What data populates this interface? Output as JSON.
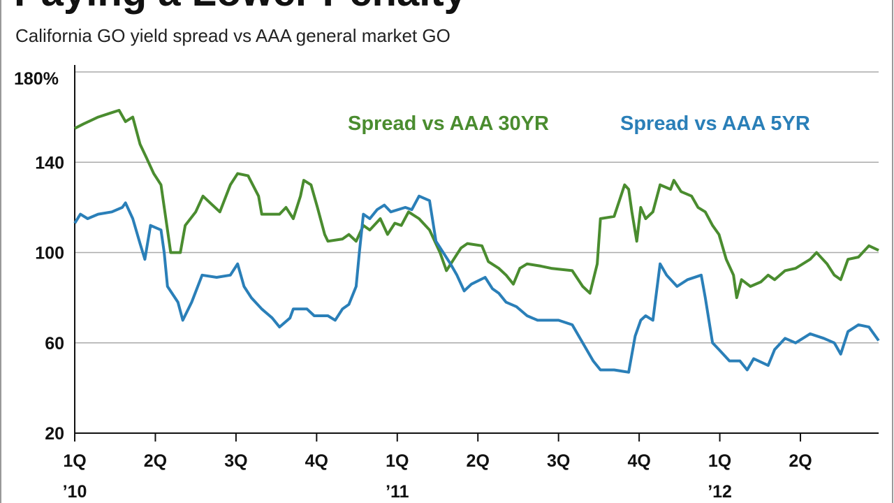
{
  "chart_data": {
    "type": "line",
    "title": "Paying a Lower Penalty",
    "subtitle": "California GO yield spread vs AAA general market GO",
    "xlim": [
      0,
      9.97
    ],
    "xticks": [
      {
        "value": 0,
        "label": "1Q"
      },
      {
        "value": 1,
        "label": "2Q"
      },
      {
        "value": 2,
        "label": "3Q"
      },
      {
        "value": 3,
        "label": "4Q"
      },
      {
        "value": 4,
        "label": "1Q"
      },
      {
        "value": 5,
        "label": "2Q"
      },
      {
        "value": 6,
        "label": "3Q"
      },
      {
        "value": 7,
        "label": "4Q"
      },
      {
        "value": 8,
        "label": "1Q"
      },
      {
        "value": 9,
        "label": "2Q"
      }
    ],
    "xtick_years": [
      {
        "value": 0,
        "label": "’10"
      },
      {
        "value": 4,
        "label": "’11"
      },
      {
        "value": 8,
        "label": "’12"
      }
    ],
    "ylim": [
      20,
      180
    ],
    "yticks": [
      20,
      60,
      100,
      140,
      {
        "value": 180,
        "label": "180%"
      }
    ],
    "grid": true,
    "series": [
      {
        "name": "Spread vs AAA 30YR",
        "color": "#4a8c2f",
        "x": [
          0,
          0.11,
          0.29,
          0.46,
          0.55,
          0.63,
          0.72,
          0.81,
          0.89,
          0.98,
          1.07,
          1.15,
          1.19,
          1.31,
          1.37,
          1.5,
          1.59,
          1.68,
          1.8,
          1.93,
          2.02,
          2.15,
          2.28,
          2.32,
          2.54,
          2.62,
          2.71,
          2.8,
          2.84,
          2.93,
          3.01,
          3.1,
          3.14,
          3.32,
          3.4,
          3.49,
          3.58,
          3.66,
          3.79,
          3.88,
          3.97,
          4.05,
          4.14,
          4.27,
          4.4,
          4.53,
          4.61,
          4.7,
          4.79,
          4.87,
          5.05,
          5.13,
          5.26,
          5.35,
          5.44,
          5.52,
          5.61,
          5.78,
          5.91,
          6.17,
          6.3,
          6.39,
          6.48,
          6.52,
          6.69,
          6.82,
          6.87,
          6.91,
          6.97,
          7.02,
          7.08,
          7.17,
          7.26,
          7.39,
          7.43,
          7.52,
          7.65,
          7.73,
          7.82,
          7.91,
          7.99,
          8.08,
          8.17,
          8.21,
          8.27,
          8.38,
          8.51,
          8.6,
          8.68,
          8.81,
          8.94,
          9.12,
          9.2,
          9.33,
          9.42,
          9.5,
          9.59,
          9.72,
          9.85,
          9.97
        ],
        "values": [
          155,
          157,
          160,
          162,
          163,
          158,
          160,
          148,
          142,
          135,
          130,
          110,
          100,
          100,
          112,
          118,
          125,
          122,
          118,
          130,
          135,
          134,
          125,
          117,
          117,
          120,
          115,
          125,
          132,
          130,
          120,
          108,
          105,
          106,
          108,
          105,
          112,
          110,
          115,
          108,
          113,
          112,
          118,
          115,
          110,
          100,
          92,
          97,
          102,
          104,
          103,
          96,
          93,
          90,
          86,
          93,
          95,
          94,
          93,
          92,
          85,
          82,
          95,
          115,
          116,
          130,
          128,
          118,
          105,
          120,
          115,
          118,
          130,
          128,
          132,
          127,
          125,
          120,
          118,
          112,
          108,
          97,
          90,
          80,
          88,
          85,
          87,
          90,
          88,
          92,
          93,
          97,
          100,
          95,
          90,
          88,
          97,
          98,
          103,
          101
        ]
      },
      {
        "name": "Spread vs AAA 5YR",
        "color": "#2a7fb8",
        "x": [
          0,
          0.07,
          0.16,
          0.29,
          0.46,
          0.59,
          0.63,
          0.72,
          0.81,
          0.87,
          0.94,
          1.07,
          1.11,
          1.15,
          1.28,
          1.34,
          1.45,
          1.58,
          1.76,
          1.93,
          2.02,
          2.1,
          2.19,
          2.32,
          2.45,
          2.54,
          2.67,
          2.71,
          2.88,
          2.97,
          3.14,
          3.23,
          3.32,
          3.4,
          3.49,
          3.53,
          3.58,
          3.66,
          3.75,
          3.84,
          3.92,
          4.1,
          4.18,
          4.27,
          4.4,
          4.48,
          4.57,
          4.66,
          4.74,
          4.83,
          4.92,
          5.09,
          5.18,
          5.26,
          5.35,
          5.48,
          5.61,
          5.74,
          6,
          6.17,
          6.3,
          6.43,
          6.52,
          6.69,
          6.87,
          6.95,
          7.02,
          7.08,
          7.17,
          7.26,
          7.34,
          7.47,
          7.6,
          7.77,
          7.82,
          7.91,
          7.99,
          8.12,
          8.25,
          8.34,
          8.42,
          8.6,
          8.68,
          8.81,
          8.94,
          9.12,
          9.29,
          9.42,
          9.5,
          9.59,
          9.72,
          9.85,
          9.97
        ],
        "values": [
          113,
          117,
          115,
          117,
          118,
          120,
          122,
          115,
          104,
          97,
          112,
          110,
          100,
          85,
          78,
          70,
          78,
          90,
          89,
          90,
          95,
          85,
          80,
          75,
          71,
          67,
          71,
          75,
          75,
          72,
          72,
          70,
          75,
          77,
          85,
          100,
          117,
          115,
          119,
          121,
          118,
          120,
          119,
          125,
          123,
          105,
          100,
          95,
          90,
          83,
          86,
          89,
          84,
          82,
          78,
          76,
          72,
          70,
          70,
          68,
          60,
          52,
          48,
          48,
          47,
          63,
          70,
          72,
          70,
          95,
          90,
          85,
          88,
          90,
          80,
          60,
          57,
          52,
          52,
          48,
          53,
          50,
          57,
          62,
          60,
          64,
          62,
          60,
          55,
          65,
          68,
          67,
          61
        ]
      }
    ]
  }
}
